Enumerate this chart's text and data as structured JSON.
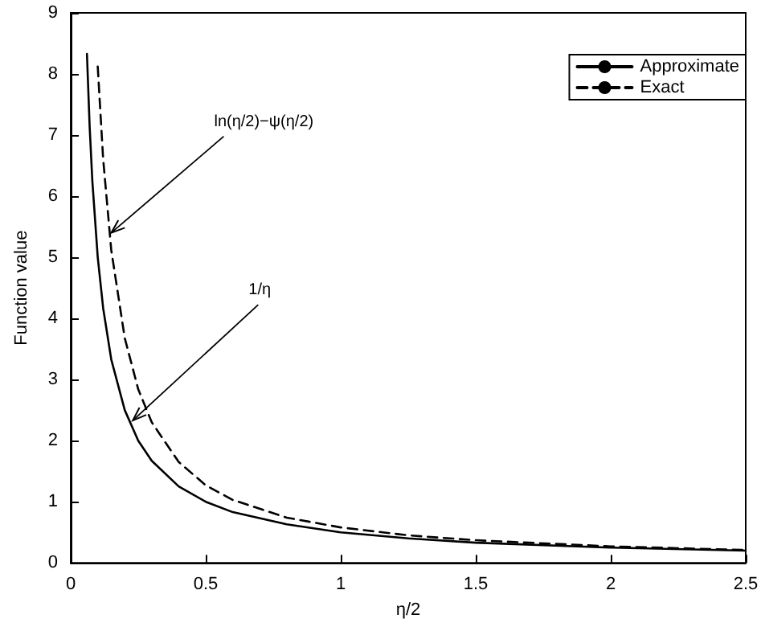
{
  "chart_data": {
    "type": "line",
    "xlabel": "η/2",
    "ylabel": "Function value",
    "xlim": [
      0,
      2.5
    ],
    "xticks": [
      0,
      0.5,
      1,
      1.5,
      2,
      2.5
    ],
    "ylim": [
      0,
      9
    ],
    "yticks": [
      0,
      1,
      2,
      3,
      4,
      5,
      6,
      7,
      8,
      9
    ],
    "legend": "top right",
    "grid": false,
    "marker": "none",
    "series": [
      {
        "name": "Approximate",
        "color": "#000000",
        "line_style": "solid",
        "x": [
          0.06,
          0.07,
          0.08,
          0.1,
          0.12,
          0.15,
          0.2,
          0.25,
          0.3,
          0.4,
          0.5,
          0.6,
          0.8,
          1,
          1.25,
          1.5,
          2,
          2.5
        ],
        "values": [
          8.33,
          7.14,
          6.25,
          5,
          4.17,
          3.33,
          2.5,
          2,
          1.67,
          1.25,
          1,
          0.83,
          0.63,
          0.5,
          0.4,
          0.33,
          0.25,
          0.2
        ]
      },
      {
        "name": "Exact",
        "color": "#000000",
        "line_style": "dashed",
        "x": [
          0.1,
          0.12,
          0.15,
          0.2,
          0.25,
          0.3,
          0.4,
          0.5,
          0.6,
          0.8,
          1,
          1.25,
          1.5,
          2,
          2.5
        ],
        "values": [
          8.12,
          6.61,
          5.12,
          3.68,
          2.84,
          2.3,
          1.65,
          1.27,
          1.03,
          0.74,
          0.58,
          0.45,
          0.37,
          0.27,
          0.21
        ]
      }
    ],
    "annotations": [
      {
        "text": "ln(η/2)−ψ(η/2)",
        "x": 0.15,
        "y": 5.4
      },
      {
        "text": "1/η",
        "x": 0.23,
        "y": 2.33
      }
    ]
  }
}
